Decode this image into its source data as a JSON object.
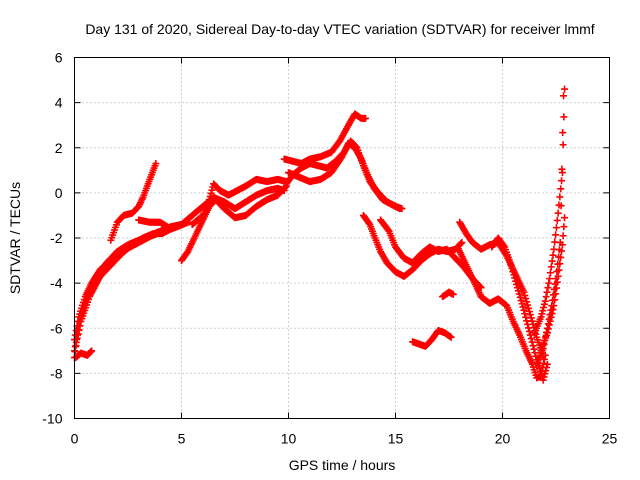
{
  "chart_data": {
    "type": "scatter",
    "title": "Day 131 of 2020, Sidereal Day-to-day VTEC variation (SDTVAR) for receiver lmmf",
    "xlabel": "GPS time / hours",
    "ylabel": "SDTVAR / TECUs",
    "xlim": [
      0,
      25
    ],
    "ylim": [
      -10,
      6
    ],
    "xticks": [
      "0",
      "5",
      "10",
      "15",
      "20",
      "25"
    ],
    "yticks": [
      "-10",
      "-8",
      "-6",
      "-4",
      "-2",
      "0",
      "2",
      "4",
      "6"
    ],
    "xtick_values": [
      0,
      5,
      10,
      15,
      20,
      25
    ],
    "ytick_values": [
      -10,
      -8,
      -6,
      -4,
      -2,
      0,
      2,
      4,
      6
    ],
    "grid": true,
    "marker": "plus",
    "color": "#ff0000",
    "series": [
      {
        "name": "s1",
        "x": [
          0,
          0.1,
          0.3,
          0.6,
          1.0,
          1.5,
          2.0,
          2.5,
          3.0,
          3.5,
          4.0,
          4.5,
          5.0
        ],
        "y": [
          -7.3,
          -6.5,
          -5.5,
          -4.6,
          -3.8,
          -3.1,
          -2.6,
          -2.3,
          -2.1,
          -1.9,
          -1.7,
          -1.5,
          -1.4
        ]
      },
      {
        "name": "s2",
        "x": [
          0,
          0.3,
          0.7,
          1.2,
          1.8,
          2.4,
          3.0,
          3.6,
          4.2,
          4.8,
          5.3
        ],
        "y": [
          -7.0,
          -5.7,
          -4.6,
          -3.7,
          -3.1,
          -2.5,
          -2.2,
          -1.9,
          -1.7,
          -1.5,
          -1.3
        ]
      },
      {
        "name": "s3",
        "x": [
          0.0,
          0.2,
          0.5,
          0.8,
          1.2,
          1.7,
          2.2,
          2.7,
          3.2,
          3.7,
          4.1,
          4.5
        ],
        "y": [
          -6.5,
          -5.5,
          -4.6,
          -4.0,
          -3.4,
          -3.0,
          -2.7,
          -2.3,
          -2.0,
          -1.8,
          -1.8,
          -1.6
        ]
      },
      {
        "name": "s4",
        "x": [
          0.05,
          0.3,
          0.6,
          0.8
        ],
        "y": [
          -7.3,
          -7.1,
          -7.2,
          -7.0
        ]
      },
      {
        "name": "s5",
        "x": [
          1.7,
          2.0,
          2.3,
          2.7,
          3.0,
          3.2,
          3.4,
          3.6,
          3.8
        ],
        "y": [
          -2.1,
          -1.3,
          -1.0,
          -0.9,
          -0.6,
          -0.2,
          0.3,
          0.8,
          1.3
        ]
      },
      {
        "name": "s6",
        "x": [
          3.0,
          3.5,
          4.0,
          4.5,
          5.0,
          5.5,
          6.0,
          6.5,
          7.0,
          7.5,
          8.0,
          8.5,
          9.0,
          9.5,
          9.8
        ],
        "y": [
          -1.2,
          -1.3,
          -1.3,
          -1.6,
          -1.4,
          -1.0,
          -0.6,
          -0.2,
          -0.4,
          -0.7,
          -0.4,
          -0.1,
          0.1,
          0.2,
          0.1
        ]
      },
      {
        "name": "s7",
        "x": [
          5.0,
          5.3,
          5.6,
          6.0,
          6.3,
          6.6,
          7.0,
          7.5,
          8.0,
          8.5,
          9.0,
          9.5,
          9.9
        ],
        "y": [
          -3.0,
          -2.6,
          -2.0,
          -1.2,
          -0.6,
          -0.3,
          -0.7,
          -1.1,
          -1.0,
          -0.6,
          -0.3,
          -0.1,
          0.3
        ]
      },
      {
        "name": "s8",
        "x": [
          5.5,
          6.0,
          6.3,
          6.5,
          6.8,
          7.2,
          7.6,
          8.0,
          8.5,
          9.0,
          9.5,
          9.9
        ],
        "y": [
          -1.4,
          -1.0,
          -0.3,
          0.4,
          0.1,
          -0.1,
          0.1,
          0.3,
          0.6,
          0.5,
          0.6,
          0.5
        ]
      },
      {
        "name": "s9",
        "x": [
          9.9,
          10.2,
          10.6,
          11.0,
          11.4,
          11.8,
          12.2,
          12.6,
          12.9,
          13.2,
          13.5,
          13.8,
          14.2,
          14.6,
          15.0,
          15.3
        ],
        "y": [
          0.4,
          0.8,
          1.1,
          1.3,
          1.2,
          1.1,
          1.4,
          1.8,
          2.3,
          2.0,
          1.2,
          0.5,
          0.0,
          -0.4,
          -0.6,
          -0.7
        ]
      },
      {
        "name": "s10",
        "x": [
          9.8,
          10.2,
          10.6,
          11.0,
          11.5,
          12.0,
          12.4,
          12.8,
          13.1,
          13.4,
          13.6
        ],
        "y": [
          1.5,
          1.4,
          1.3,
          1.5,
          1.6,
          1.8,
          2.3,
          3.0,
          3.5,
          3.3,
          3.3
        ]
      },
      {
        "name": "s11",
        "x": [
          10.0,
          10.5,
          11.0,
          11.5,
          12.0,
          12.5,
          12.8,
          13.1,
          13.4,
          13.7,
          14.0,
          14.4,
          14.8,
          15.2
        ],
        "y": [
          0.9,
          0.7,
          0.5,
          0.6,
          0.9,
          1.6,
          2.2,
          2.0,
          1.5,
          0.8,
          0.2,
          -0.3,
          -0.5,
          -0.7
        ]
      },
      {
        "name": "s12",
        "x": [
          13.5,
          13.8,
          14.0,
          14.3,
          14.6,
          15.0,
          15.4,
          15.8,
          16.2,
          16.6,
          17.0,
          17.4,
          17.8,
          18.1
        ],
        "y": [
          -1.0,
          -1.4,
          -1.9,
          -2.6,
          -3.1,
          -3.5,
          -3.7,
          -3.4,
          -3.0,
          -2.7,
          -2.5,
          -2.6,
          -2.5,
          -2.2
        ]
      },
      {
        "name": "s13",
        "x": [
          14.3,
          14.7,
          15.0,
          15.4,
          15.8,
          16.2,
          16.6,
          17.0,
          17.4,
          17.8,
          18.2,
          18.6,
          19.0
        ],
        "y": [
          -1.2,
          -1.7,
          -2.4,
          -2.9,
          -3.1,
          -2.7,
          -2.4,
          -2.6,
          -2.5,
          -2.9,
          -3.3,
          -3.8,
          -4.2
        ]
      },
      {
        "name": "s14",
        "x": [
          15.8,
          16.1,
          16.4,
          16.7,
          17.0,
          17.3,
          17.6
        ],
        "y": [
          -6.6,
          -6.7,
          -6.8,
          -6.5,
          -6.1,
          -6.2,
          -6.4
        ]
      },
      {
        "name": "s15",
        "x": [
          17.2,
          17.5,
          17.7
        ],
        "y": [
          -4.6,
          -4.4,
          -4.5
        ]
      },
      {
        "name": "s16",
        "x": [
          17.9,
          18.2,
          18.6,
          19.0,
          19.4,
          19.8,
          20.2,
          20.5,
          20.8,
          21.1,
          21.4,
          21.6,
          21.8,
          22.0
        ],
        "y": [
          -2.4,
          -3.0,
          -3.8,
          -4.6,
          -4.9,
          -4.7,
          -5.0,
          -5.7,
          -6.3,
          -7.0,
          -7.6,
          -8.2,
          -8.1,
          -7.2
        ]
      },
      {
        "name": "s17",
        "x": [
          18.0,
          18.3,
          18.6,
          19.0,
          19.4,
          19.8,
          20.2,
          20.6,
          21.0,
          21.3,
          21.6,
          21.9
        ],
        "y": [
          -1.3,
          -1.8,
          -2.2,
          -2.5,
          -2.3,
          -2.2,
          -2.8,
          -3.6,
          -4.4,
          -5.4,
          -6.4,
          -7.2
        ]
      },
      {
        "name": "s18",
        "x": [
          19.5,
          19.8,
          20.1,
          20.4,
          20.7,
          21.0,
          21.3,
          21.6,
          21.9,
          22.1
        ],
        "y": [
          -2.4,
          -2.0,
          -2.4,
          -3.2,
          -4.2,
          -5.2,
          -6.3,
          -7.4,
          -8.3,
          -7.6
        ]
      },
      {
        "name": "s19",
        "x": [
          21.5,
          21.8,
          22.0,
          22.2,
          22.4,
          22.6,
          22.8,
          22.9
        ],
        "y": [
          -6.2,
          -5.5,
          -4.8,
          -3.8,
          -2.5,
          -0.9,
          0.9,
          4.6
        ]
      },
      {
        "name": "s20",
        "x": [
          21.8,
          22.1,
          22.4,
          22.6,
          22.8,
          22.9
        ],
        "y": [
          -7.0,
          -6.2,
          -5.0,
          -3.7,
          -2.3,
          -1.1
        ]
      },
      {
        "name": "s21",
        "x": [
          21.6,
          21.9,
          22.1,
          22.3,
          22.5,
          22.7,
          22.85
        ],
        "y": [
          -7.6,
          -6.9,
          -6.0,
          -5.0,
          -3.8,
          -2.2,
          4.3
        ]
      }
    ]
  }
}
